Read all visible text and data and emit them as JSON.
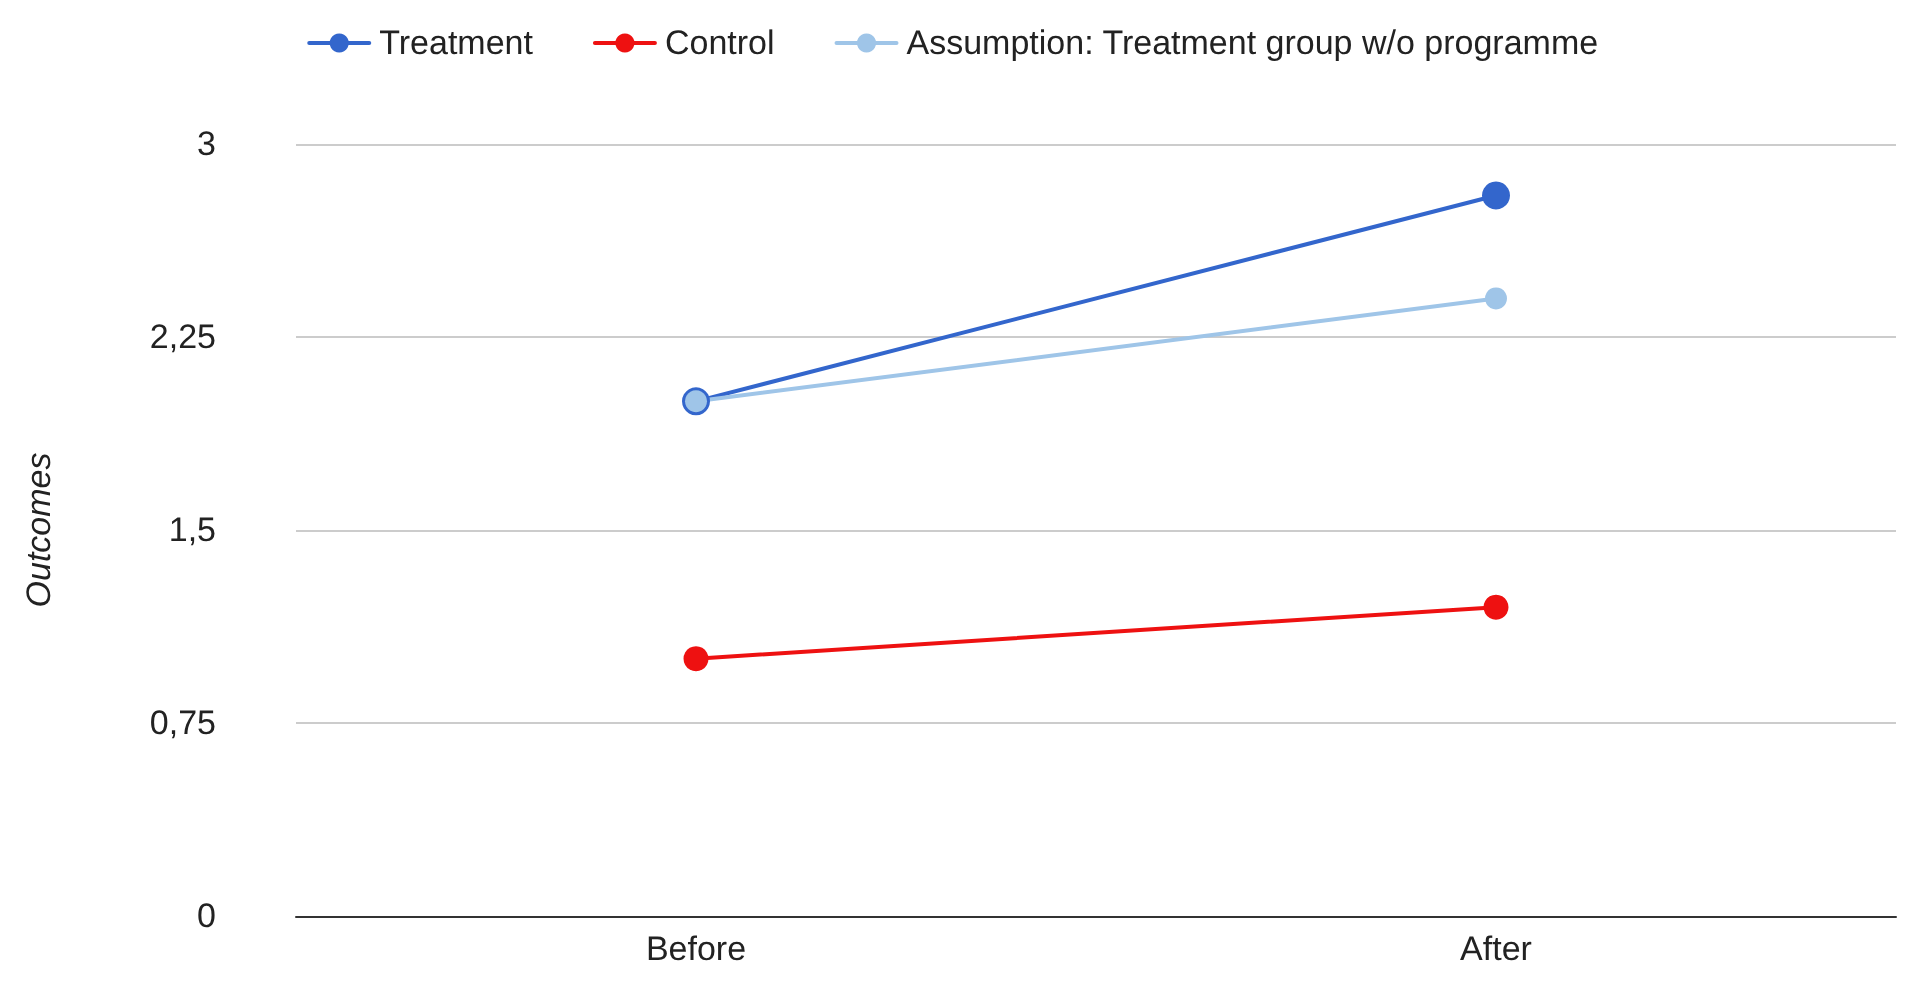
{
  "chart_data": {
    "type": "line",
    "ylabel": "Outcomes",
    "categories": [
      "Before",
      "After"
    ],
    "series": [
      {
        "name": "Treatment",
        "color": "#3366cc",
        "values": [
          2,
          2.8
        ]
      },
      {
        "name": "Control",
        "color": "#ee1111",
        "values": [
          1,
          1.2
        ]
      },
      {
        "name": "Assumption: Treatment group w/o programme",
        "color": "#9fc5e8",
        "values": [
          2,
          2.4
        ]
      }
    ],
    "ylim": [
      0,
      3
    ],
    "yticks": [
      0,
      {
        "value": 0.75,
        "label": "0,75"
      },
      {
        "value": 1.5,
        "label": "1,5"
      },
      {
        "value": 2.25,
        "label": "2,25"
      },
      3
    ],
    "grid": "y",
    "legend": "top",
    "marker": "circle",
    "line_style": "solid"
  }
}
